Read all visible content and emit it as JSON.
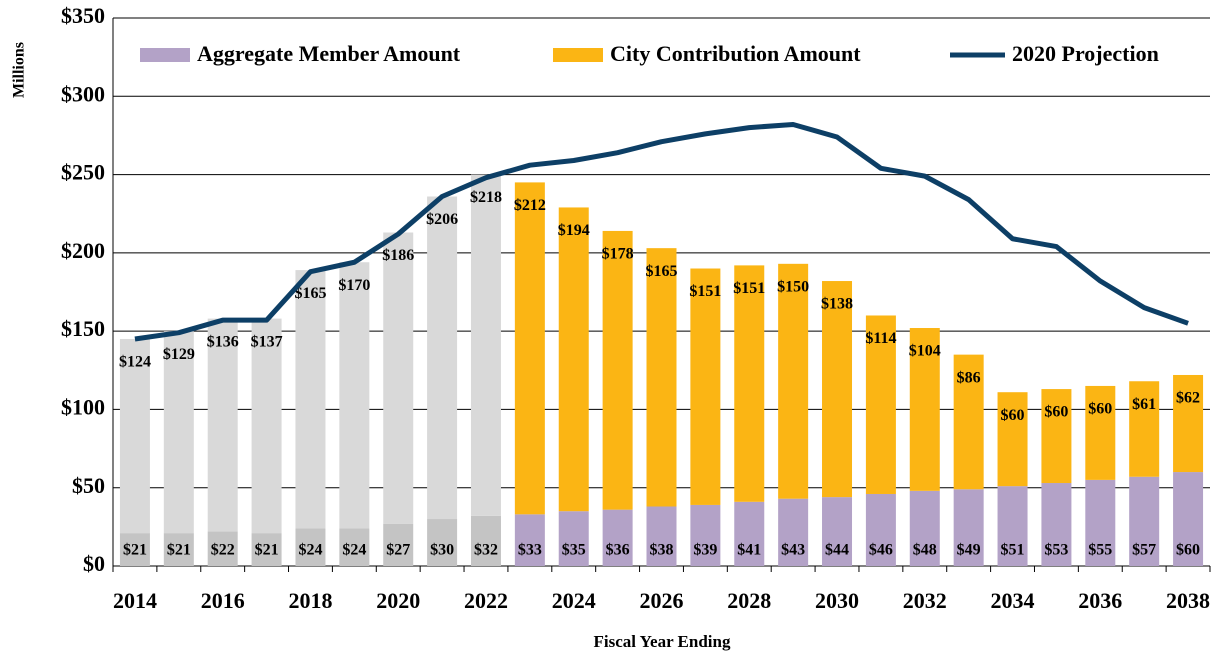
{
  "chart_data": {
    "type": "bar",
    "y_label": "Millions",
    "x_label": "Fiscal Year Ending",
    "categories": [
      "2014",
      null,
      "2016",
      null,
      "2018",
      null,
      "2020",
      null,
      "2022",
      null,
      "2024",
      null,
      "2026",
      null,
      "2028",
      null,
      "2030",
      null,
      "2032",
      null,
      "2034",
      null,
      "2036",
      null,
      "2038"
    ],
    "ylim": [
      0,
      350
    ],
    "yticks": [
      {
        "value": 0,
        "label": "$0"
      },
      {
        "value": 50,
        "label": "$50"
      },
      {
        "value": 100,
        "label": "$100"
      },
      {
        "value": 150,
        "label": "$150"
      },
      {
        "value": 200,
        "label": "$200"
      },
      {
        "value": 250,
        "label": "$250"
      },
      {
        "value": 300,
        "label": "$300"
      },
      {
        "value": 350,
        "label": "$350"
      }
    ],
    "grid": true,
    "series": [
      {
        "name": "Aggregate Member Amount",
        "color": "#b3a2c7",
        "colors": [
          "#c4c4c4",
          "#c4c4c4",
          "#c4c4c4",
          "#c4c4c4",
          "#c4c4c4",
          "#c4c4c4",
          "#c4c4c4",
          "#c4c4c4",
          "#c4c4c4",
          "#b3a2c7",
          "#b3a2c7",
          "#b3a2c7",
          "#b3a2c7",
          "#b3a2c7",
          "#b3a2c7",
          "#b3a2c7",
          "#b3a2c7",
          "#b3a2c7",
          "#b3a2c7",
          "#b3a2c7",
          "#b3a2c7",
          "#b3a2c7",
          "#b3a2c7",
          "#b3a2c7",
          "#b3a2c7"
        ],
        "values": [
          21,
          21,
          22,
          21,
          24,
          24,
          27,
          30,
          32,
          33,
          35,
          36,
          38,
          39,
          41,
          43,
          44,
          46,
          48,
          49,
          51,
          53,
          55,
          57,
          60
        ],
        "value_labels": [
          "$21",
          "$21",
          "$22",
          "$21",
          "$24",
          "$24",
          "$27",
          "$30",
          "$32",
          "$33",
          "$35",
          "$36",
          "$38",
          "$39",
          "$41",
          "$43",
          "$44",
          "$46",
          "$48",
          "$49",
          "$51",
          "$53",
          "$55",
          "$57",
          "$60"
        ]
      },
      {
        "name": "City Contribution Amount",
        "color": "#fbb514",
        "colors": [
          "#d9d9d9",
          "#d9d9d9",
          "#d9d9d9",
          "#d9d9d9",
          "#d9d9d9",
          "#d9d9d9",
          "#d9d9d9",
          "#d9d9d9",
          "#d9d9d9",
          "#fbb514",
          "#fbb514",
          "#fbb514",
          "#fbb514",
          "#fbb514",
          "#fbb514",
          "#fbb514",
          "#fbb514",
          "#fbb514",
          "#fbb514",
          "#fbb514",
          "#fbb514",
          "#fbb514",
          "#fbb514",
          "#fbb514",
          "#fbb514"
        ],
        "values": [
          124,
          129,
          136,
          137,
          165,
          170,
          186,
          206,
          218,
          212,
          194,
          178,
          165,
          151,
          151,
          150,
          138,
          114,
          104,
          86,
          60,
          60,
          60,
          61,
          62
        ],
        "value_labels": [
          "$124",
          "$129",
          "$136",
          "$137",
          "$165",
          "$170",
          "$186",
          "$206",
          "$218",
          "$212",
          "$194",
          "$178",
          "$165",
          "$151",
          "$151",
          "$150",
          "$138",
          "$114",
          "$104",
          "$86",
          "$60",
          "$60",
          "$60",
          "$61",
          "$62"
        ]
      },
      {
        "name": "2020 Projection",
        "color": "#0d3f66",
        "type": "line",
        "values": [
          145,
          149,
          157,
          157,
          188,
          194,
          212,
          236,
          248,
          256,
          259,
          264,
          271,
          276,
          280,
          282,
          274,
          254,
          249,
          234,
          209,
          204,
          182,
          165,
          155
        ]
      }
    ]
  }
}
